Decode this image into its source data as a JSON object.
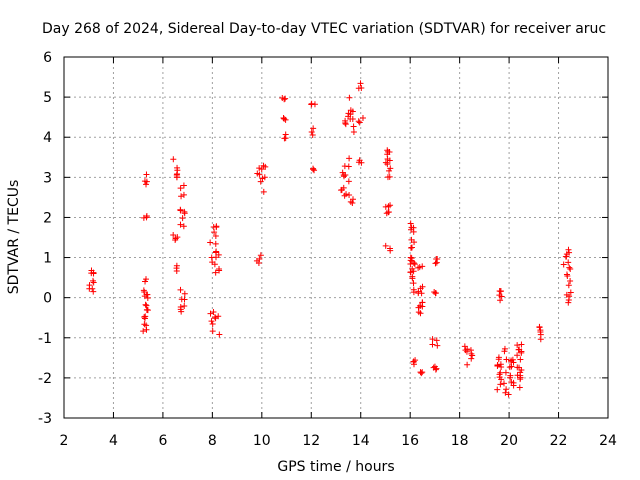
{
  "chart_data": {
    "type": "scatter",
    "title": "Day 268 of 2024, Sidereal Day-to-day VTEC variation (SDTVAR) for receiver aruc",
    "xlabel": "GPS time / hours",
    "ylabel": "SDTVAR / TECUs",
    "xlim": [
      2,
      24
    ],
    "ylim": [
      -3,
      6
    ],
    "xticks": [
      2,
      4,
      6,
      8,
      10,
      12,
      14,
      16,
      18,
      20,
      22,
      24
    ],
    "yticks": [
      -3,
      -2,
      -1,
      0,
      1,
      2,
      3,
      4,
      5,
      6
    ],
    "grid": true,
    "marker": "+",
    "color": "#ff0000",
    "clusters": [
      {
        "x": [
          3.0,
          3.2
        ],
        "y": [
          0.1,
          0.8
        ]
      },
      {
        "x": [
          5.2,
          5.4
        ],
        "y": [
          -0.9,
          0.5
        ]
      },
      {
        "x": [
          5.2,
          5.4
        ],
        "y": [
          1.95,
          2.05
        ]
      },
      {
        "x": [
          5.2,
          5.4
        ],
        "y": [
          2.8,
          3.1
        ]
      },
      {
        "x": [
          6.4,
          6.6
        ],
        "y": [
          0.6,
          0.8
        ]
      },
      {
        "x": [
          6.4,
          6.6
        ],
        "y": [
          1.35,
          1.6
        ]
      },
      {
        "x": [
          6.4,
          6.6
        ],
        "y": [
          3.0,
          3.5
        ]
      },
      {
        "x": [
          6.7,
          6.9
        ],
        "y": [
          -0.4,
          0.2
        ]
      },
      {
        "x": [
          6.7,
          6.9
        ],
        "y": [
          1.7,
          2.2
        ]
      },
      {
        "x": [
          6.7,
          6.9
        ],
        "y": [
          2.5,
          2.8
        ]
      },
      {
        "x": [
          7.9,
          8.3
        ],
        "y": [
          -0.95,
          -0.3
        ]
      },
      {
        "x": [
          7.9,
          8.3
        ],
        "y": [
          0.6,
          1.8
        ]
      },
      {
        "x": [
          9.8,
          10.2
        ],
        "y": [
          2.6,
          3.3
        ]
      },
      {
        "x": [
          9.8,
          10.0
        ],
        "y": [
          0.85,
          1.1
        ]
      },
      {
        "x": [
          10.8,
          11.0
        ],
        "y": [
          3.95,
          4.1
        ]
      },
      {
        "x": [
          10.8,
          11.0
        ],
        "y": [
          4.4,
          4.5
        ]
      },
      {
        "x": [
          10.8,
          11.0
        ],
        "y": [
          4.9,
          5.05
        ]
      },
      {
        "x": [
          12.0,
          12.2
        ],
        "y": [
          3.15,
          3.25
        ]
      },
      {
        "x": [
          12.0,
          12.2
        ],
        "y": [
          4.05,
          4.25
        ]
      },
      {
        "x": [
          12.0,
          12.2
        ],
        "y": [
          4.8,
          4.85
        ]
      },
      {
        "x": [
          13.2,
          13.8
        ],
        "y": [
          2.3,
          3.5
        ]
      },
      {
        "x": [
          13.2,
          13.8
        ],
        "y": [
          4.1,
          5.0
        ]
      },
      {
        "x": [
          13.9,
          14.1
        ],
        "y": [
          3.35,
          3.5
        ]
      },
      {
        "x": [
          13.9,
          14.1
        ],
        "y": [
          4.35,
          4.55
        ]
      },
      {
        "x": [
          13.9,
          14.1
        ],
        "y": [
          5.2,
          5.4
        ]
      },
      {
        "x": [
          15.0,
          15.2
        ],
        "y": [
          1.15,
          1.3
        ]
      },
      {
        "x": [
          15.0,
          15.2
        ],
        "y": [
          2.1,
          2.5
        ]
      },
      {
        "x": [
          15.0,
          15.2
        ],
        "y": [
          2.95,
          3.8
        ]
      },
      {
        "x": [
          16.0,
          16.2
        ],
        "y": [
          -1.7,
          -1.45
        ]
      },
      {
        "x": [
          16.0,
          16.2
        ],
        "y": [
          0.1,
          1.85
        ]
      },
      {
        "x": [
          16.3,
          16.5
        ],
        "y": [
          -2.05,
          -1.8
        ]
      },
      {
        "x": [
          16.3,
          16.5
        ],
        "y": [
          -0.6,
          0.3
        ]
      },
      {
        "x": [
          16.3,
          16.5
        ],
        "y": [
          0.7,
          0.8
        ]
      },
      {
        "x": [
          16.9,
          17.1
        ],
        "y": [
          -1.8,
          -1.55
        ]
      },
      {
        "x": [
          16.9,
          17.1
        ],
        "y": [
          -1.2,
          -0.95
        ]
      },
      {
        "x": [
          16.9,
          17.1
        ],
        "y": [
          0.1,
          0.15
        ]
      },
      {
        "x": [
          16.9,
          17.1
        ],
        "y": [
          0.8,
          1.05
        ]
      },
      {
        "x": [
          18.2,
          18.6
        ],
        "y": [
          -1.8,
          -1.15
        ]
      },
      {
        "x": [
          19.5,
          19.8
        ],
        "y": [
          -2.35,
          -1.4
        ]
      },
      {
        "x": [
          19.6,
          19.7
        ],
        "y": [
          -0.1,
          0.3
        ]
      },
      {
        "x": [
          19.8,
          20.2
        ],
        "y": [
          -2.45,
          -1.2
        ]
      },
      {
        "x": [
          20.3,
          20.5
        ],
        "y": [
          -2.3,
          -1.1
        ]
      },
      {
        "x": [
          21.2,
          21.3
        ],
        "y": [
          -1.05,
          -0.6
        ]
      },
      {
        "x": [
          22.2,
          22.5
        ],
        "y": [
          -0.15,
          0.2
        ]
      },
      {
        "x": [
          22.2,
          22.5
        ],
        "y": [
          0.3,
          1.2
        ]
      }
    ]
  }
}
